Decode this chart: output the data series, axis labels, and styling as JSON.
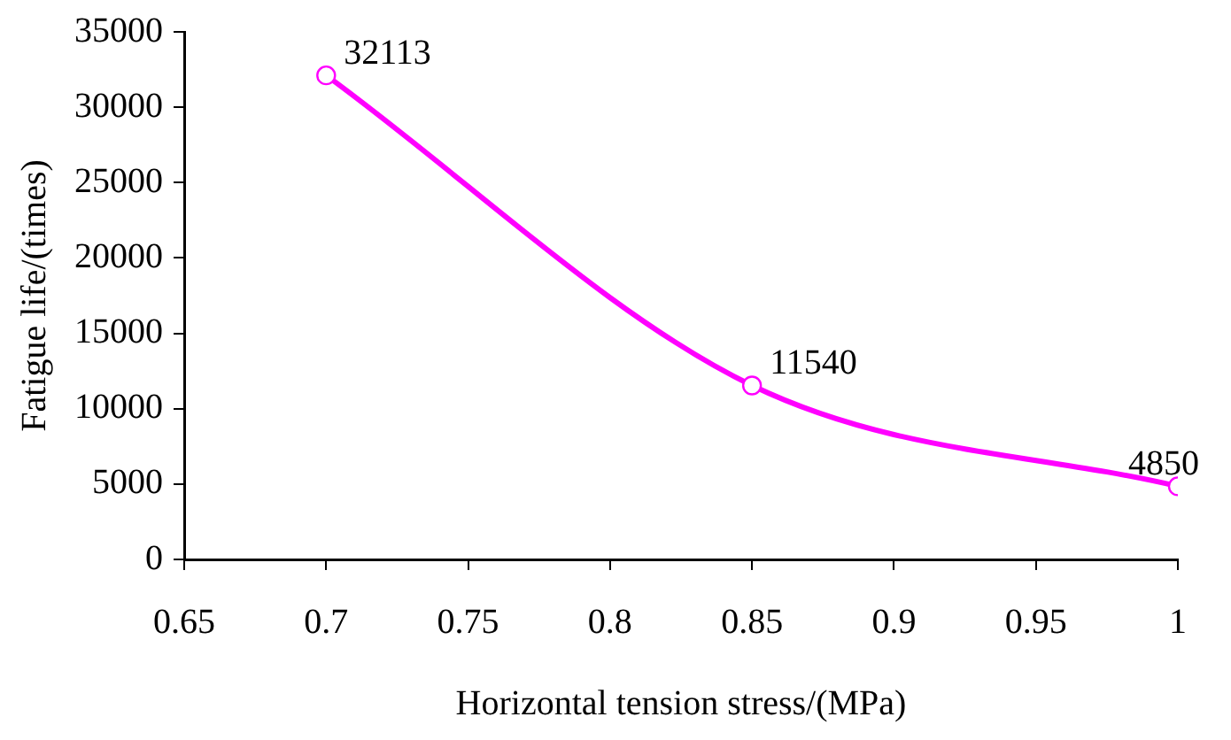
{
  "chart_data": {
    "type": "line",
    "xlabel": "Horizontal tension stress/(MPa)",
    "ylabel": "Fatigue life/(times)",
    "x": [
      0.7,
      0.85,
      1
    ],
    "series": [
      {
        "color": "#ff00ff",
        "values": [
          32113,
          11540,
          4850
        ]
      }
    ],
    "xlim": [
      0.65,
      1
    ],
    "xticks": [
      0.65,
      0.7,
      0.75,
      0.8,
      0.85,
      0.9,
      0.95,
      1
    ],
    "ylim": [
      0,
      35000
    ],
    "yticks": [
      0,
      5000,
      10000,
      15000,
      20000,
      25000,
      30000,
      35000
    ],
    "grid": false,
    "legend": false,
    "marker": "circle",
    "line_style": "solid",
    "data_labels": true
  }
}
